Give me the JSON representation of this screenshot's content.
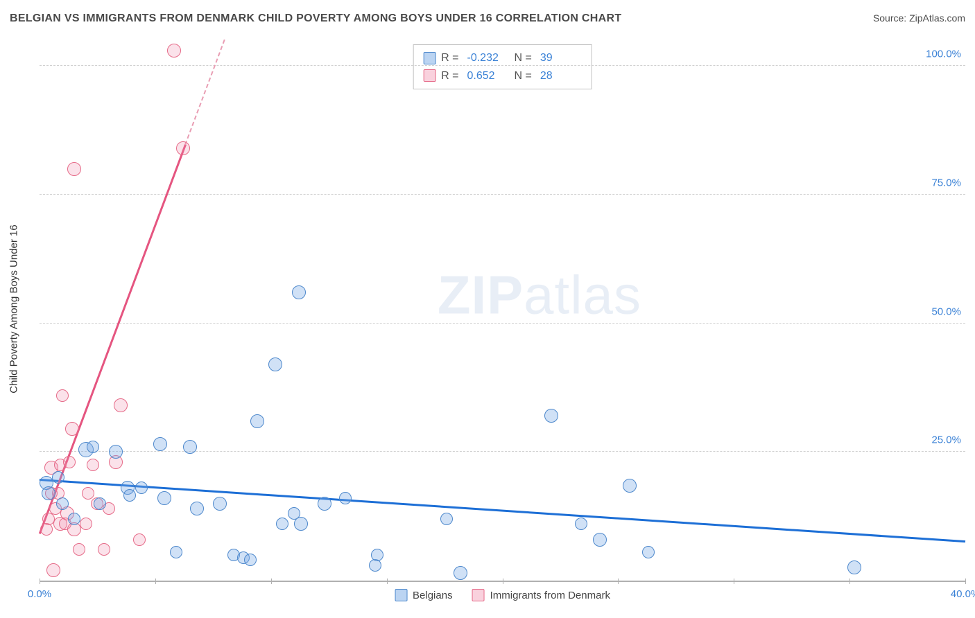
{
  "header": {
    "title": "BELGIAN VS IMMIGRANTS FROM DENMARK CHILD POVERTY AMONG BOYS UNDER 16 CORRELATION CHART",
    "source_label": "Source: ",
    "source_name": "ZipAtlas.com"
  },
  "axis": {
    "y_label": "Child Poverty Among Boys Under 16",
    "x_min": 0,
    "x_max": 40,
    "y_min": 0,
    "y_max": 105,
    "x_ticks": [
      0,
      5,
      10,
      15,
      20,
      25,
      30,
      35,
      40
    ],
    "y_ticks": [
      25,
      50,
      75,
      100
    ],
    "x_labels": [
      {
        "v": 0,
        "t": "0.0%"
      },
      {
        "v": 40,
        "t": "40.0%"
      }
    ],
    "y_labels": [
      {
        "v": 25,
        "t": "25.0%"
      },
      {
        "v": 50,
        "t": "50.0%"
      },
      {
        "v": 75,
        "t": "75.0%"
      },
      {
        "v": 100,
        "t": "100.0%"
      }
    ],
    "grid_color": "#d0d0d0"
  },
  "watermark": {
    "pre": "ZIP",
    "post": "atlas"
  },
  "series": {
    "blue": {
      "label": "Belgians",
      "point_fill": "rgba(120,170,230,0.35)",
      "point_stroke": "#4d88cc",
      "trend_color": "#1d6fd6",
      "trend": {
        "x1": 0,
        "y1": 19.5,
        "x2": 40,
        "y2": 7.5
      },
      "points": [
        {
          "x": 0.3,
          "y": 19,
          "r": 10
        },
        {
          "x": 0.4,
          "y": 17,
          "r": 10
        },
        {
          "x": 0.8,
          "y": 20,
          "r": 9
        },
        {
          "x": 1.0,
          "y": 15,
          "r": 9
        },
        {
          "x": 1.5,
          "y": 12,
          "r": 9
        },
        {
          "x": 2.0,
          "y": 25.5,
          "r": 11
        },
        {
          "x": 2.3,
          "y": 26,
          "r": 9
        },
        {
          "x": 2.6,
          "y": 15,
          "r": 9
        },
        {
          "x": 3.3,
          "y": 25,
          "r": 10
        },
        {
          "x": 3.8,
          "y": 18,
          "r": 10
        },
        {
          "x": 3.9,
          "y": 16.5,
          "r": 9
        },
        {
          "x": 4.4,
          "y": 18,
          "r": 9
        },
        {
          "x": 5.2,
          "y": 26.5,
          "r": 10
        },
        {
          "x": 5.4,
          "y": 16,
          "r": 10
        },
        {
          "x": 5.9,
          "y": 5.5,
          "r": 9
        },
        {
          "x": 6.5,
          "y": 26,
          "r": 10
        },
        {
          "x": 6.8,
          "y": 14,
          "r": 10
        },
        {
          "x": 7.8,
          "y": 15,
          "r": 10
        },
        {
          "x": 8.4,
          "y": 5,
          "r": 9
        },
        {
          "x": 8.8,
          "y": 4.5,
          "r": 9
        },
        {
          "x": 9.1,
          "y": 4,
          "r": 9
        },
        {
          "x": 9.4,
          "y": 31,
          "r": 10
        },
        {
          "x": 10.2,
          "y": 42,
          "r": 10
        },
        {
          "x": 10.5,
          "y": 11,
          "r": 9
        },
        {
          "x": 11.0,
          "y": 13,
          "r": 9
        },
        {
          "x": 11.2,
          "y": 56,
          "r": 10
        },
        {
          "x": 11.3,
          "y": 11,
          "r": 10
        },
        {
          "x": 12.3,
          "y": 15,
          "r": 10
        },
        {
          "x": 13.2,
          "y": 16,
          "r": 9
        },
        {
          "x": 14.5,
          "y": 3,
          "r": 9
        },
        {
          "x": 14.6,
          "y": 5,
          "r": 9
        },
        {
          "x": 17.6,
          "y": 12,
          "r": 9
        },
        {
          "x": 18.2,
          "y": 1.5,
          "r": 10
        },
        {
          "x": 22.1,
          "y": 32,
          "r": 10
        },
        {
          "x": 23.4,
          "y": 11,
          "r": 9
        },
        {
          "x": 24.2,
          "y": 8,
          "r": 10
        },
        {
          "x": 25.5,
          "y": 18.5,
          "r": 10
        },
        {
          "x": 26.3,
          "y": 5.5,
          "r": 9
        },
        {
          "x": 35.2,
          "y": 2.5,
          "r": 10
        }
      ]
    },
    "pink": {
      "label": "Immigrants from Denmark",
      "point_fill": "rgba(240,140,170,0.25)",
      "point_stroke": "#e66a88",
      "trend_color": "#e55580",
      "trend": {
        "x1": 0,
        "y1": 9,
        "x2": 8,
        "y2": 105
      },
      "dash_from_x": 6.3,
      "points": [
        {
          "x": 0.3,
          "y": 10,
          "r": 9
        },
        {
          "x": 0.4,
          "y": 12,
          "r": 9
        },
        {
          "x": 0.5,
          "y": 22,
          "r": 10
        },
        {
          "x": 0.5,
          "y": 17,
          "r": 9
        },
        {
          "x": 0.6,
          "y": 2,
          "r": 10
        },
        {
          "x": 0.7,
          "y": 14,
          "r": 9
        },
        {
          "x": 0.8,
          "y": 17,
          "r": 9
        },
        {
          "x": 0.9,
          "y": 11,
          "r": 10
        },
        {
          "x": 0.9,
          "y": 22.5,
          "r": 9
        },
        {
          "x": 1.0,
          "y": 36,
          "r": 9
        },
        {
          "x": 1.1,
          "y": 11,
          "r": 9
        },
        {
          "x": 1.2,
          "y": 13,
          "r": 10
        },
        {
          "x": 1.3,
          "y": 23,
          "r": 9
        },
        {
          "x": 1.4,
          "y": 29.5,
          "r": 10
        },
        {
          "x": 1.5,
          "y": 80,
          "r": 10
        },
        {
          "x": 1.5,
          "y": 10,
          "r": 10
        },
        {
          "x": 1.7,
          "y": 6,
          "r": 9
        },
        {
          "x": 2.0,
          "y": 11,
          "r": 9
        },
        {
          "x": 2.1,
          "y": 17,
          "r": 9
        },
        {
          "x": 2.3,
          "y": 22.5,
          "r": 9
        },
        {
          "x": 2.5,
          "y": 15,
          "r": 9
        },
        {
          "x": 2.8,
          "y": 6,
          "r": 9
        },
        {
          "x": 3.0,
          "y": 14,
          "r": 9
        },
        {
          "x": 3.3,
          "y": 23,
          "r": 10
        },
        {
          "x": 3.5,
          "y": 34,
          "r": 10
        },
        {
          "x": 4.3,
          "y": 8,
          "r": 9
        },
        {
          "x": 5.8,
          "y": 103,
          "r": 10
        },
        {
          "x": 6.2,
          "y": 84,
          "r": 10
        }
      ]
    }
  },
  "stats": {
    "rows": [
      {
        "swatch": "blue",
        "r_label": "R =",
        "r_val": "-0.232",
        "n_label": "N =",
        "n_val": "39"
      },
      {
        "swatch": "pink",
        "r_label": "R =",
        "r_val": "0.652",
        "n_label": "N =",
        "n_val": "28"
      }
    ]
  },
  "bottom_legend": {
    "items": [
      {
        "swatch": "blue",
        "label_key": "series.blue.label"
      },
      {
        "swatch": "pink",
        "label_key": "series.pink.label"
      }
    ]
  }
}
